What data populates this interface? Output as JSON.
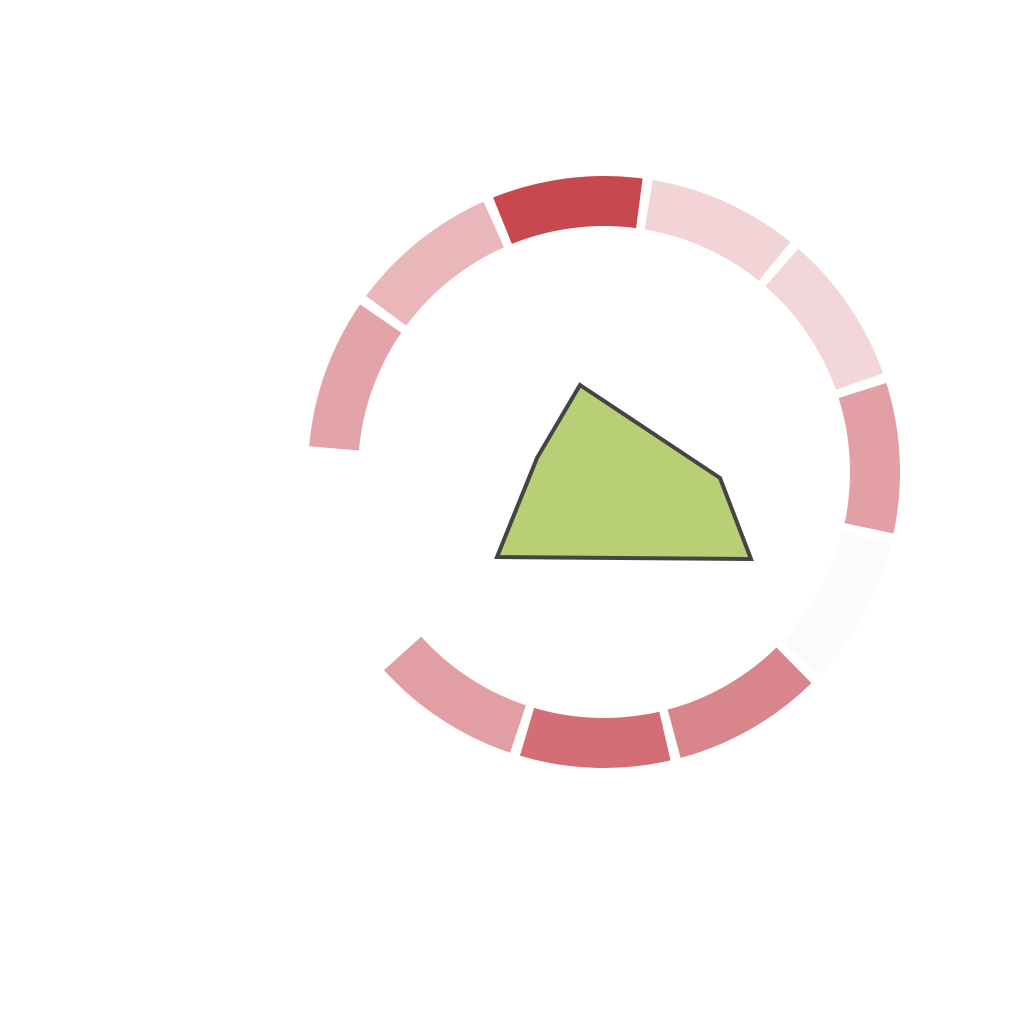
{
  "background": "#ffffff",
  "ring": {
    "separator_color": "#ffffff",
    "segments": [
      {
        "id": "segment-1",
        "color": "#e3a4a9"
      },
      {
        "id": "segment-2",
        "color": "#e9b6ba"
      },
      {
        "id": "segment-3",
        "color": "#c8484f"
      },
      {
        "id": "segment-4",
        "color": "#f2d4d6"
      },
      {
        "id": "segment-5",
        "color": "#f2d6d9"
      },
      {
        "id": "segment-6",
        "color": "#e29fa4"
      },
      {
        "id": "segment-7",
        "color": "#fdfafa"
      },
      {
        "id": "segment-8",
        "color": "#d8868c"
      },
      {
        "id": "segment-9",
        "color": "#d36e76"
      },
      {
        "id": "segment-10",
        "color": "#e29fa3"
      }
    ]
  },
  "center_shape": {
    "fill": "#b8cf76",
    "stroke": "#444444"
  }
}
